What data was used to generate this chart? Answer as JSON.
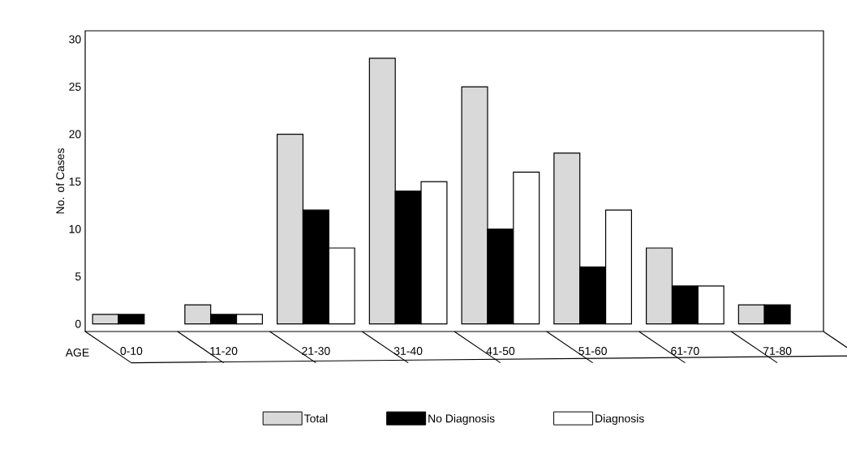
{
  "chart_data": {
    "type": "bar",
    "xlabel": "AGE",
    "ylabel": "No. of Cases",
    "categories": [
      "0-10",
      "11-20",
      "21-30",
      "31-40",
      "41-50",
      "51-60",
      "61-70",
      "71-80"
    ],
    "series": [
      {
        "name": "Total",
        "color": "#d9d9d9",
        "values": [
          1,
          2,
          20,
          28,
          25,
          18,
          8,
          2
        ]
      },
      {
        "name": "No Diagnosis",
        "color": "#000000",
        "values": [
          1,
          1,
          12,
          14,
          10,
          6,
          4,
          2
        ]
      },
      {
        "name": "Diagnosis",
        "color": "#ffffff",
        "values": [
          null,
          1,
          8,
          15,
          16,
          12,
          4,
          null
        ]
      }
    ],
    "ylim": [
      -0.8,
      30.9
    ],
    "yticks": [
      0,
      5,
      10,
      15,
      20,
      25,
      30
    ],
    "grid": false,
    "legend": "bottom"
  }
}
